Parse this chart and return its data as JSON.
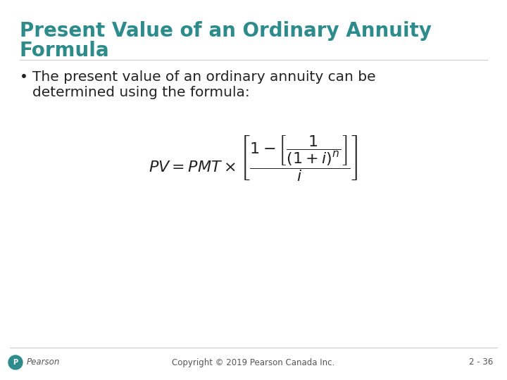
{
  "title_line1": "Present Value of an Ordinary Annuity",
  "title_line2": "Formula",
  "title_color": "#2E8B8B",
  "bullet_text_line1": "The present value of an ordinary annuity can be",
  "bullet_text_line2": "determined using the formula:",
  "footer_text": "Copyright © 2019 Pearson Canada Inc.",
  "slide_number": "2 - 36",
  "bg_color": "#FFFFFF",
  "text_color": "#222222",
  "footer_color": "#555555",
  "title_fontsize": 20,
  "body_fontsize": 14.5,
  "formula_fontsize": 16
}
